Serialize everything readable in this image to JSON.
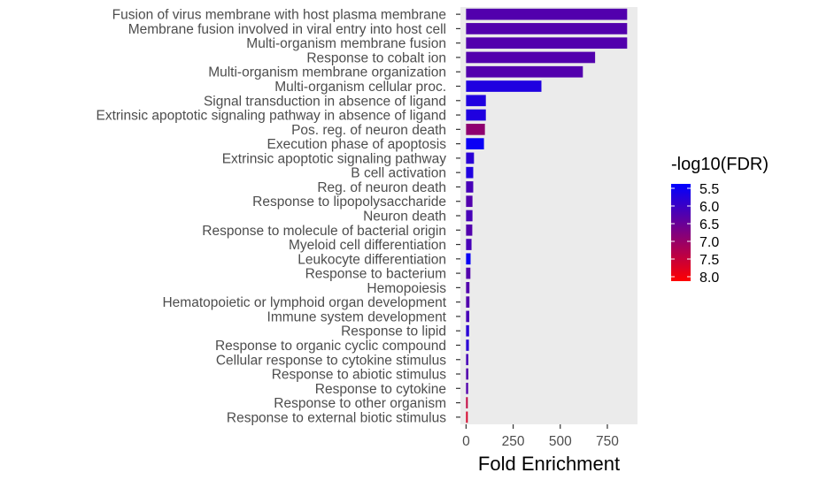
{
  "chart_data": {
    "type": "bar",
    "orientation": "horizontal",
    "xlabel": "Fold Enrichment",
    "ylabel": "",
    "xlim": [
      -30,
      910
    ],
    "xticks": [
      0,
      250,
      500,
      750
    ],
    "grid": false,
    "panel_background": "#ebebeb",
    "categories": [
      "Fusion of virus membrane with host plasma membrane",
      "Membrane fusion involved in viral entry into host cell",
      "Multi-organism membrane fusion",
      "Response to cobalt ion",
      "Multi-organism membrane organization",
      "Multi-organism cellular proc.",
      "Signal transduction in absence of ligand",
      "Extrinsic apoptotic signaling pathway in absence of ligand",
      "Pos. reg. of neuron death",
      "Execution phase of apoptosis",
      "Extrinsic apoptotic signaling pathway",
      "B cell activation",
      "Reg. of neuron death",
      "Response to lipopolysaccharide",
      "Neuron death",
      "Response to molecule of bacterial origin",
      "Myeloid cell differentiation",
      "Leukocyte differentiation",
      "Response to bacterium",
      "Hemopoiesis",
      "Hematopoietic or lymphoid organ development",
      "Immune system development",
      "Response to lipid",
      "Response to organic cyclic compound",
      "Cellular response to cytokine stimulus",
      "Response to abiotic stimulus",
      "Response to cytokine",
      "Response to other organism",
      "Response to external biotic stimulus"
    ],
    "values": [
      855,
      855,
      855,
      685,
      620,
      400,
      105,
      105,
      100,
      95,
      42,
      38,
      38,
      34,
      34,
      33,
      29,
      24,
      23,
      18,
      18,
      17,
      16,
      15,
      12,
      12,
      11,
      9,
      9
    ],
    "color_values": [
      6.3,
      6.3,
      6.3,
      6.3,
      6.3,
      5.8,
      5.8,
      5.8,
      6.9,
      5.6,
      5.9,
      5.8,
      6.2,
      6.3,
      6.2,
      6.3,
      6.2,
      5.6,
      6.3,
      6.3,
      6.3,
      6.2,
      5.9,
      5.9,
      6.2,
      6.3,
      6.3,
      7.4,
      7.6
    ],
    "legend": {
      "title": "-log10(FDR)",
      "position": "right",
      "labels": [
        "5.5",
        "6.0",
        "6.5",
        "7.0",
        "7.5",
        "8.0"
      ],
      "range": [
        5.5,
        8.0
      ],
      "color_low": "#ff0000",
      "color_high": "#0000ff"
    }
  }
}
